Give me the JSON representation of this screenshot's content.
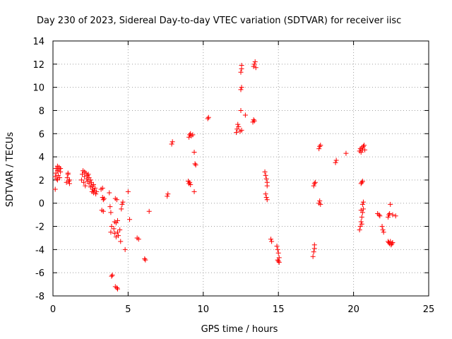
{
  "chart_data": {
    "type": "scatter",
    "title": "Day 230 of 2023, Sidereal Day-to-day VTEC variation (SDTVAR) for receiver iisc",
    "xlabel": "GPS time / hours",
    "ylabel": "SDTVAR / TECUs",
    "xlim": [
      0,
      25
    ],
    "ylim": [
      -8,
      14
    ],
    "xticks": [
      0,
      5,
      10,
      15,
      20,
      25
    ],
    "yticks": [
      -8,
      -6,
      -4,
      -2,
      0,
      2,
      4,
      6,
      8,
      10,
      12,
      14
    ],
    "grid": true,
    "marker": "+",
    "color": "#ff0000",
    "series": [
      {
        "name": "SDTVAR",
        "points": [
          [
            0.15,
            2.3
          ],
          [
            0.2,
            2.6
          ],
          [
            0.2,
            3.0
          ],
          [
            0.25,
            2.1
          ],
          [
            0.3,
            2.8
          ],
          [
            0.3,
            3.2
          ],
          [
            0.35,
            2.4
          ],
          [
            0.4,
            2.9
          ],
          [
            0.4,
            3.1
          ],
          [
            0.45,
            2.2
          ],
          [
            0.5,
            2.7
          ],
          [
            0.5,
            3.0
          ],
          [
            0.15,
            1.2
          ],
          [
            0.3,
            2.0
          ],
          [
            0.9,
            1.8
          ],
          [
            0.95,
            2.2
          ],
          [
            1.0,
            2.5
          ],
          [
            1.05,
            1.9
          ],
          [
            1.1,
            2.0
          ],
          [
            1.1,
            1.7
          ],
          [
            1.0,
            2.6
          ],
          [
            1.9,
            2.0
          ],
          [
            1.95,
            2.5
          ],
          [
            2.0,
            2.8
          ],
          [
            2.05,
            1.8
          ],
          [
            2.1,
            2.3
          ],
          [
            2.1,
            2.7
          ],
          [
            2.15,
            1.5
          ],
          [
            2.2,
            2.6
          ],
          [
            2.25,
            2.1
          ],
          [
            2.3,
            2.4
          ],
          [
            2.3,
            1.9
          ],
          [
            2.35,
            2.5
          ],
          [
            2.4,
            1.7
          ],
          [
            2.4,
            2.2
          ],
          [
            2.5,
            1.4
          ],
          [
            2.5,
            2.0
          ],
          [
            2.55,
            1.8
          ],
          [
            2.6,
            1.0
          ],
          [
            2.6,
            1.5
          ],
          [
            2.65,
            1.2
          ],
          [
            2.7,
            0.9
          ],
          [
            2.7,
            1.6
          ],
          [
            2.75,
            1.1
          ],
          [
            2.8,
            1.3
          ],
          [
            2.85,
            0.8
          ],
          [
            2.9,
            1.0
          ],
          [
            3.2,
            1.2
          ],
          [
            3.3,
            1.3
          ],
          [
            3.3,
            0.5
          ],
          [
            3.35,
            0.3
          ],
          [
            3.4,
            0.4
          ],
          [
            3.25,
            -0.6
          ],
          [
            3.35,
            -0.7
          ],
          [
            3.75,
            0.9
          ],
          [
            3.8,
            -0.3
          ],
          [
            3.85,
            -0.8
          ],
          [
            3.9,
            -2.0
          ],
          [
            3.85,
            -2.5
          ],
          [
            3.9,
            -6.3
          ],
          [
            3.95,
            -6.2
          ],
          [
            4.05,
            -2.2
          ],
          [
            4.1,
            -2.6
          ],
          [
            4.1,
            -1.6
          ],
          [
            4.15,
            0.4
          ],
          [
            4.2,
            -2.9
          ],
          [
            4.2,
            -1.7
          ],
          [
            4.25,
            0.3
          ],
          [
            4.3,
            -2.5
          ],
          [
            4.3,
            -1.5
          ],
          [
            4.35,
            -2.8
          ],
          [
            4.15,
            -7.2
          ],
          [
            4.25,
            -7.3
          ],
          [
            4.3,
            -7.4
          ],
          [
            4.45,
            -2.3
          ],
          [
            4.5,
            -3.3
          ],
          [
            4.55,
            -0.5
          ],
          [
            4.6,
            -0.1
          ],
          [
            4.65,
            0.1
          ],
          [
            4.8,
            -4.0
          ],
          [
            5.0,
            1.0
          ],
          [
            5.1,
            -1.4
          ],
          [
            5.6,
            -3.0
          ],
          [
            5.7,
            -3.1
          ],
          [
            6.1,
            -4.8
          ],
          [
            6.15,
            -4.9
          ],
          [
            6.4,
            -0.7
          ],
          [
            7.6,
            0.6
          ],
          [
            7.65,
            0.8
          ],
          [
            7.9,
            5.1
          ],
          [
            7.95,
            5.3
          ],
          [
            9.0,
            1.9
          ],
          [
            9.05,
            1.7
          ],
          [
            9.1,
            1.8
          ],
          [
            9.15,
            1.6
          ],
          [
            9.05,
            5.7
          ],
          [
            9.1,
            5.9
          ],
          [
            9.15,
            6.0
          ],
          [
            9.2,
            5.8
          ],
          [
            9.3,
            5.9
          ],
          [
            9.4,
            4.4
          ],
          [
            9.45,
            3.4
          ],
          [
            9.5,
            3.3
          ],
          [
            9.4,
            1.0
          ],
          [
            10.3,
            7.3
          ],
          [
            10.35,
            7.4
          ],
          [
            12.2,
            6.1
          ],
          [
            12.25,
            6.4
          ],
          [
            12.3,
            6.8
          ],
          [
            12.35,
            6.6
          ],
          [
            12.45,
            6.2
          ],
          [
            12.55,
            6.3
          ],
          [
            12.5,
            8.0
          ],
          [
            12.8,
            7.6
          ],
          [
            12.5,
            9.8
          ],
          [
            12.55,
            10.0
          ],
          [
            12.5,
            11.3
          ],
          [
            12.55,
            11.6
          ],
          [
            12.55,
            11.9
          ],
          [
            13.3,
            7.0
          ],
          [
            13.35,
            7.2
          ],
          [
            13.4,
            7.1
          ],
          [
            13.35,
            11.8
          ],
          [
            13.4,
            12.0
          ],
          [
            13.45,
            12.2
          ],
          [
            13.5,
            11.7
          ],
          [
            14.1,
            2.7
          ],
          [
            14.15,
            2.4
          ],
          [
            14.2,
            2.1
          ],
          [
            14.25,
            1.8
          ],
          [
            14.15,
            0.8
          ],
          [
            14.2,
            0.5
          ],
          [
            14.25,
            0.3
          ],
          [
            14.25,
            1.5
          ],
          [
            14.5,
            -3.1
          ],
          [
            14.55,
            -3.3
          ],
          [
            14.9,
            -3.7
          ],
          [
            14.95,
            -4.0
          ],
          [
            15.0,
            -4.3
          ],
          [
            15.05,
            -4.7
          ],
          [
            15.0,
            -5.0
          ],
          [
            15.05,
            -5.1
          ],
          [
            14.95,
            -4.9
          ],
          [
            17.3,
            -4.6
          ],
          [
            17.35,
            -4.2
          ],
          [
            17.4,
            -3.9
          ],
          [
            17.4,
            -3.6
          ],
          [
            17.35,
            1.5
          ],
          [
            17.4,
            1.7
          ],
          [
            17.45,
            1.8
          ],
          [
            17.7,
            0.0
          ],
          [
            17.75,
            0.2
          ],
          [
            17.8,
            -0.1
          ],
          [
            17.7,
            4.7
          ],
          [
            17.75,
            4.9
          ],
          [
            17.8,
            5.0
          ],
          [
            18.8,
            3.5
          ],
          [
            18.85,
            3.7
          ],
          [
            19.5,
            4.3
          ],
          [
            20.4,
            -2.3
          ],
          [
            20.45,
            -2.0
          ],
          [
            20.5,
            -1.6
          ],
          [
            20.55,
            -1.2
          ],
          [
            20.6,
            -0.8
          ],
          [
            20.65,
            -0.5
          ],
          [
            20.6,
            -0.1
          ],
          [
            20.65,
            0.1
          ],
          [
            20.5,
            -0.6
          ],
          [
            20.55,
            -1.8
          ],
          [
            20.5,
            1.7
          ],
          [
            20.55,
            1.8
          ],
          [
            20.6,
            1.9
          ],
          [
            20.4,
            4.5
          ],
          [
            20.45,
            4.7
          ],
          [
            20.5,
            4.4
          ],
          [
            20.55,
            4.8
          ],
          [
            20.6,
            4.6
          ],
          [
            20.65,
            4.9
          ],
          [
            20.7,
            5.0
          ],
          [
            20.75,
            4.6
          ],
          [
            21.6,
            -0.9
          ],
          [
            21.7,
            -1.0
          ],
          [
            21.75,
            -1.1
          ],
          [
            21.9,
            -2.0
          ],
          [
            21.95,
            -2.3
          ],
          [
            22.0,
            -2.5
          ],
          [
            22.3,
            -1.2
          ],
          [
            22.35,
            -1.0
          ],
          [
            22.4,
            -0.9
          ],
          [
            22.45,
            -0.1
          ],
          [
            22.3,
            -3.3
          ],
          [
            22.35,
            -3.4
          ],
          [
            22.4,
            -3.5
          ],
          [
            22.45,
            -3.3
          ],
          [
            22.5,
            -3.6
          ],
          [
            22.55,
            -3.5
          ],
          [
            22.6,
            -3.4
          ],
          [
            22.6,
            -1.0
          ],
          [
            22.8,
            -1.1
          ]
        ]
      }
    ]
  }
}
